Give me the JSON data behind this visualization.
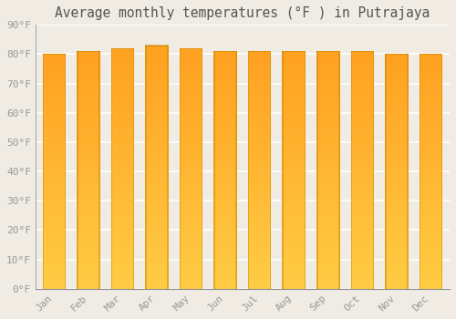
{
  "title": "Average monthly temperatures (°F ) in Putrajaya",
  "months": [
    "Jan",
    "Feb",
    "Mar",
    "Apr",
    "May",
    "Jun",
    "Jul",
    "Aug",
    "Sep",
    "Oct",
    "Nov",
    "Dec"
  ],
  "values": [
    80,
    81,
    82,
    83,
    82,
    81,
    81,
    81,
    81,
    81,
    80,
    80
  ],
  "bar_color_bottom": "#FFCC44",
  "bar_color_top": "#FFA020",
  "bar_outline_color": "#CC8800",
  "background_color": "#f0ece4",
  "plot_bg_color": "#f0ece4",
  "grid_color": "#ffffff",
  "ylim": [
    0,
    90
  ],
  "yticks": [
    0,
    10,
    20,
    30,
    40,
    50,
    60,
    70,
    80,
    90
  ],
  "ytick_labels": [
    "0°F",
    "10°F",
    "20°F",
    "30°F",
    "40°F",
    "50°F",
    "60°F",
    "70°F",
    "80°F",
    "90°F"
  ],
  "title_fontsize": 10.5,
  "tick_fontsize": 8,
  "font_color": "#999999",
  "title_color": "#555555",
  "font_family": "monospace",
  "bar_width": 0.68,
  "n_gradient": 200
}
